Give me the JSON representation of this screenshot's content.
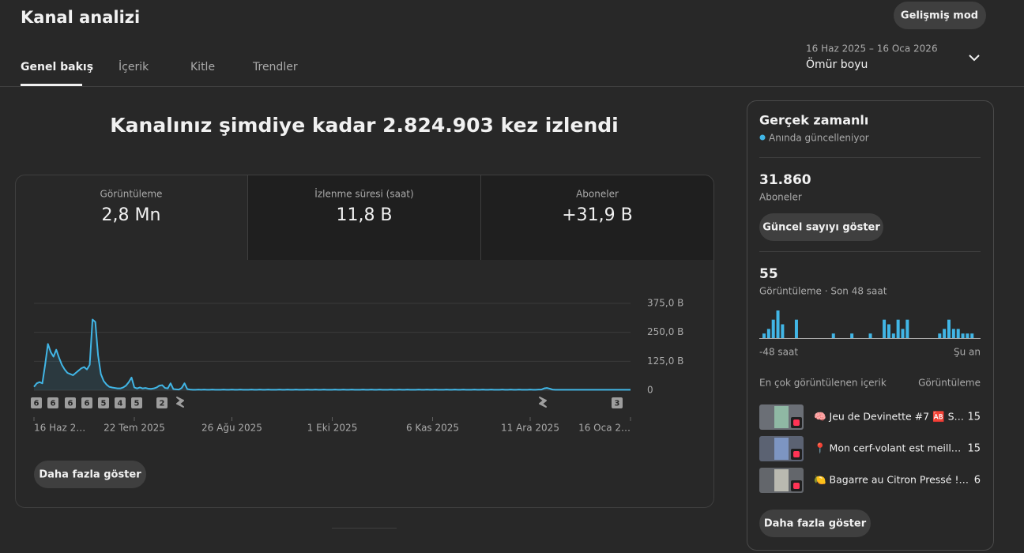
{
  "header": {
    "title": "Kanal analizi",
    "advanced_button": "Gelişmiş mod",
    "date_range": "16 Haz 2025 – 16 Oca 2026",
    "period": "Ömür boyu"
  },
  "tabs": [
    "Genel bakış",
    "İçerik",
    "Kitle",
    "Trendler"
  ],
  "headline": "Kanalınız şimdiye kadar 2.824.903 kez izlendi",
  "metric_tabs": [
    {
      "label": "Görüntüleme",
      "value": "2,8 Mn"
    },
    {
      "label": "İzlenme süresi (saat)",
      "value": "11,8 B"
    },
    {
      "label": "Aboneler",
      "value": "+31,9 B"
    }
  ],
  "chart_data": {
    "type": "line",
    "categories": [
      "16 Haz 2…",
      null,
      null,
      null,
      null,
      null,
      null,
      null,
      null,
      null,
      null,
      null,
      null,
      null,
      null,
      null,
      null,
      null,
      null,
      null,
      null,
      null,
      null,
      null,
      null,
      null,
      null,
      null,
      null,
      null,
      null,
      null,
      null,
      null,
      null,
      null,
      "22 Tem 2025",
      null,
      null,
      null,
      null,
      null,
      null,
      null,
      null,
      null,
      null,
      null,
      null,
      null,
      null,
      null,
      null,
      null,
      null,
      null,
      null,
      null,
      null,
      null,
      null,
      null,
      null,
      null,
      null,
      null,
      null,
      null,
      null,
      null,
      null,
      "26 Ağu 2025",
      null,
      null,
      null,
      null,
      null,
      null,
      null,
      null,
      null,
      null,
      null,
      null,
      null,
      null,
      null,
      null,
      null,
      null,
      null,
      null,
      null,
      null,
      null,
      null,
      null,
      null,
      null,
      null,
      null,
      null,
      null,
      null,
      null,
      null,
      null,
      "1 Eki 2025",
      null,
      null,
      null,
      null,
      null,
      null,
      null,
      null,
      null,
      null,
      null,
      null,
      null,
      null,
      null,
      null,
      null,
      null,
      null,
      null,
      null,
      null,
      null,
      null,
      null,
      null,
      null,
      null,
      null,
      null,
      null,
      null,
      null,
      null,
      null,
      "6 Kas 2025",
      null,
      null,
      null,
      null,
      null,
      null,
      null,
      null,
      null,
      null,
      null,
      null,
      null,
      null,
      null,
      null,
      null,
      null,
      null,
      null,
      null,
      null,
      null,
      null,
      null,
      null,
      null,
      null,
      null,
      null,
      null,
      null,
      null,
      null,
      "11 Ara 2025",
      null,
      null,
      null,
      null,
      null,
      null,
      null,
      null,
      null,
      null,
      null,
      null,
      null,
      null,
      null,
      null,
      null,
      null,
      null,
      null,
      null,
      null,
      null,
      null,
      null,
      null,
      null,
      null,
      null,
      null,
      null,
      null,
      null,
      null,
      null,
      "16 Oca 2…"
    ],
    "series": [
      {
        "name": "Görüntüleme",
        "color": "#41b6e6",
        "values": [
          15000,
          30000,
          35000,
          30000,
          110000,
          200000,
          165000,
          145000,
          175000,
          140000,
          110000,
          90000,
          75000,
          70000,
          65000,
          75000,
          85000,
          95000,
          100000,
          90000,
          110000,
          305000,
          295000,
          150000,
          70000,
          40000,
          25000,
          15000,
          12000,
          10000,
          8000,
          8000,
          12000,
          20000,
          35000,
          55000,
          12000,
          8000,
          12000,
          8000,
          10000,
          7000,
          6000,
          8000,
          12000,
          20000,
          22000,
          10000,
          8000,
          30000,
          5000,
          4000,
          3000,
          10000,
          30000,
          5000,
          3000,
          2000,
          2000,
          3000,
          2000,
          3000,
          2000,
          2000,
          3000,
          2000,
          2000,
          2000,
          3000,
          2000,
          2000,
          3000,
          2000,
          2000,
          3000,
          2000,
          2000,
          2000,
          3000,
          2000,
          2000,
          3000,
          2000,
          2000,
          3000,
          2000,
          2000,
          2000,
          3000,
          2000,
          2000,
          3000,
          2000,
          2000,
          3000,
          2000,
          2000,
          2000,
          3000,
          2000,
          2000,
          3000,
          2000,
          2000,
          3000,
          2000,
          2000,
          2000,
          3000,
          2000,
          2000,
          3000,
          2000,
          2000,
          3000,
          2000,
          2000,
          2000,
          3000,
          2000,
          2000,
          3000,
          2000,
          2000,
          3000,
          2000,
          2000,
          2000,
          3000,
          2000,
          2000,
          3000,
          2000,
          2000,
          3000,
          2000,
          2000,
          2000,
          3000,
          2000,
          2000,
          3000,
          2000,
          2000,
          3000,
          2000,
          2000,
          2000,
          3000,
          2000,
          2000,
          3000,
          2000,
          2000,
          3000,
          2000,
          2000,
          2000,
          3000,
          2000,
          2000,
          3000,
          2000,
          2000,
          3000,
          2000,
          2000,
          2000,
          3000,
          2000,
          2000,
          3000,
          2000,
          2000,
          3000,
          2000,
          2000,
          2000,
          3000,
          2000,
          2000,
          3000,
          3000,
          8000,
          10000,
          7000,
          3000,
          2000,
          2000,
          2000,
          2000,
          2000,
          2000,
          2000,
          2000,
          2000,
          2000,
          2000,
          2000,
          2000,
          2000,
          2000,
          2000,
          2000,
          2000,
          2000,
          2000,
          2000,
          2000,
          2000,
          2000,
          2000,
          2000,
          2000,
          2000
        ]
      }
    ],
    "ylim": [
      0,
      375000
    ],
    "yticks": [
      0,
      {
        "value": 125000,
        "label": "125,0 B"
      },
      {
        "value": 250000,
        "label": "250,0 B"
      },
      {
        "value": 375000,
        "label": "375,0 B"
      }
    ],
    "grid": true,
    "event_markers": [
      "6",
      "6",
      "6",
      "6",
      "5",
      "4",
      "5",
      "2",
      "3"
    ]
  },
  "more_button": "Daha fazla göster",
  "realtime": {
    "title": "Gerçek zamanlı",
    "status": "Anında güncelleniyor",
    "subscribers": "31.860",
    "subscribers_label": "Aboneler",
    "current_count_button": "Güncel sayıyı göster",
    "views": "55",
    "views_label": "Görüntüleme · Son 48 saat",
    "bars": {
      "color": "#41b6e6",
      "values": [
        1,
        2,
        4,
        6,
        3,
        0,
        0,
        4,
        0,
        0,
        0,
        0,
        0,
        0,
        0,
        1,
        0,
        0,
        0,
        1,
        0,
        0,
        0,
        1,
        0,
        0,
        4,
        3,
        1,
        4,
        2,
        4,
        0,
        0,
        0,
        0,
        0,
        0,
        1,
        2,
        4,
        2,
        2,
        1,
        1,
        1,
        0,
        0
      ]
    },
    "axis_start": "-48 saat",
    "axis_end": "Şu an",
    "top_content_label": "En çok görüntülenen içerik",
    "top_content_metric": "Görüntüleme",
    "top_content": [
      {
        "title": "🧠 Jeu de Devinette #7 🆎 S…",
        "views": "15"
      },
      {
        "title": "📍 Mon cerf-volant est meill…",
        "views": "15"
      },
      {
        "title": "🍋 Bagarre au Citron Pressé !…",
        "views": "6"
      }
    ],
    "more_button": "Daha fazla göster"
  }
}
